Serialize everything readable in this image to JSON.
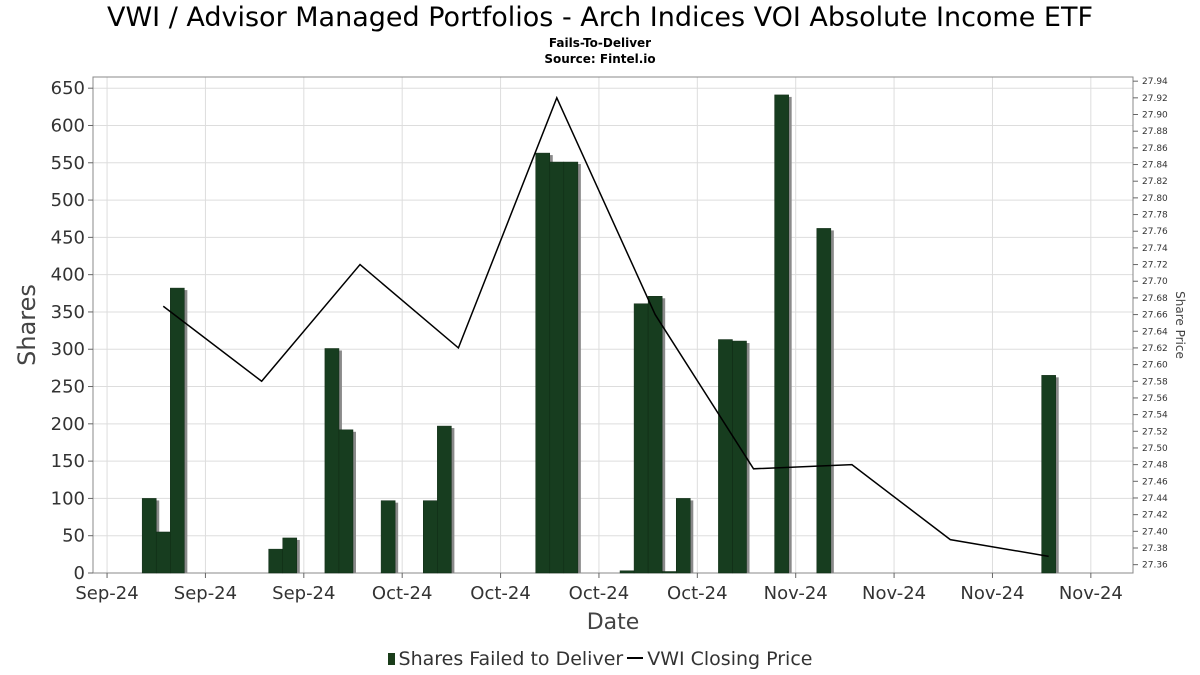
{
  "header": {
    "title": "VWI / Advisor Managed Portfolios - Arch Indices VOI Absolute Income ETF",
    "subtitle": "Fails-To-Deliver",
    "source": "Source: Fintel.io"
  },
  "legend": {
    "bar_label": "Shares Failed to Deliver",
    "line_label": "VWI Closing Price"
  },
  "colors": {
    "bar": "#173d1f",
    "bar_shadow": "#8a8a8a",
    "line": "#000000",
    "grid": "#dddddd"
  },
  "chart_data": {
    "type": "bar",
    "xlabel": "Date",
    "ylabel": "Shares",
    "y2label": "Share Price",
    "ylim": [
      0,
      665
    ],
    "y2lim": [
      27.35,
      27.945
    ],
    "xlim": [
      -1,
      73
    ],
    "yticks": [
      0,
      50,
      100,
      150,
      200,
      250,
      300,
      350,
      400,
      450,
      500,
      550,
      600,
      650
    ],
    "y2ticks": [
      "27.36",
      "27.38",
      "27.40",
      "27.42",
      "27.44",
      "27.46",
      "27.48",
      "27.50",
      "27.52",
      "27.54",
      "27.56",
      "27.58",
      "27.60",
      "27.62",
      "27.64",
      "27.66",
      "27.68",
      "27.70",
      "27.72",
      "27.74",
      "27.76",
      "27.78",
      "27.80",
      "27.82",
      "27.84",
      "27.86",
      "27.88",
      "27.90",
      "27.92",
      "27.94"
    ],
    "xticks": [
      {
        "label": "Sep-24",
        "x": 0
      },
      {
        "label": "Sep-24",
        "x": 7
      },
      {
        "label": "Sep-24",
        "x": 14
      },
      {
        "label": "Oct-24",
        "x": 21
      },
      {
        "label": "Oct-24",
        "x": 28
      },
      {
        "label": "Oct-24",
        "x": 35
      },
      {
        "label": "Oct-24",
        "x": 42
      },
      {
        "label": "Nov-24",
        "x": 49
      },
      {
        "label": "Nov-24",
        "x": 56
      },
      {
        "label": "Nov-24",
        "x": 63
      },
      {
        "label": "Nov-24",
        "x": 70
      }
    ],
    "series": [
      {
        "name": "Shares Failed to Deliver",
        "type": "bar",
        "points": [
          {
            "x": 3,
            "y": 100
          },
          {
            "x": 4,
            "y": 55
          },
          {
            "x": 5,
            "y": 382
          },
          {
            "x": 12,
            "y": 32
          },
          {
            "x": 13,
            "y": 47
          },
          {
            "x": 16,
            "y": 301
          },
          {
            "x": 17,
            "y": 192
          },
          {
            "x": 20,
            "y": 97
          },
          {
            "x": 23,
            "y": 97
          },
          {
            "x": 24,
            "y": 197
          },
          {
            "x": 31,
            "y": 563
          },
          {
            "x": 32,
            "y": 551
          },
          {
            "x": 33,
            "y": 551
          },
          {
            "x": 37,
            "y": 3
          },
          {
            "x": 38,
            "y": 361
          },
          {
            "x": 39,
            "y": 371
          },
          {
            "x": 40,
            "y": 2
          },
          {
            "x": 41,
            "y": 100
          },
          {
            "x": 44,
            "y": 313
          },
          {
            "x": 45,
            "y": 311
          },
          {
            "x": 48,
            "y": 641
          },
          {
            "x": 51,
            "y": 462
          },
          {
            "x": 67,
            "y": 265
          }
        ]
      },
      {
        "name": "VWI Closing Price",
        "type": "line",
        "points": [
          {
            "x": 4,
            "y": 27.67
          },
          {
            "x": 11,
            "y": 27.58
          },
          {
            "x": 18,
            "y": 27.72
          },
          {
            "x": 25,
            "y": 27.62
          },
          {
            "x": 32,
            "y": 27.92
          },
          {
            "x": 39,
            "y": 27.66
          },
          {
            "x": 46,
            "y": 27.475
          },
          {
            "x": 53,
            "y": 27.48
          },
          {
            "x": 60,
            "y": 27.39
          },
          {
            "x": 67,
            "y": 27.37
          }
        ]
      }
    ]
  }
}
